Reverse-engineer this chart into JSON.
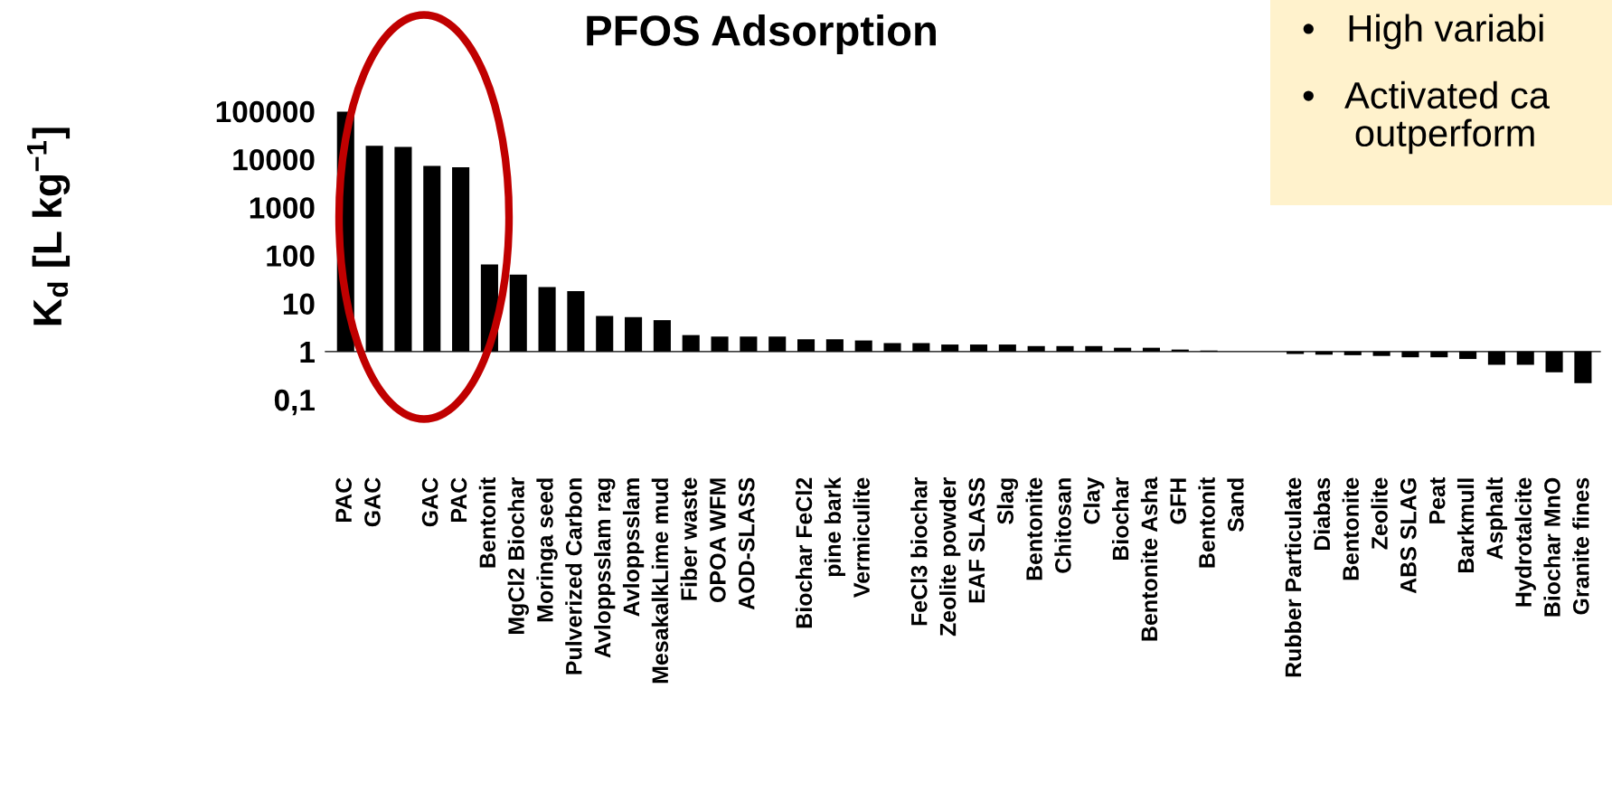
{
  "chart_data": {
    "type": "bar",
    "title": "PFOS Adsorption",
    "ylabel": "K$_{d}$ [L kg$^{−1}$]",
    "categories": [
      "PAC",
      "GAC",
      null,
      "GAC",
      "PAC",
      "Bentonit",
      "MgCl2 Biochar",
      "Moringa seed",
      "Pulverized Carbon",
      "Avloppsslam rag",
      "Avloppsslam",
      "MesakalkLime mud",
      "Fiber waste",
      "OPOA WFM",
      "AOD-SLASS",
      null,
      "Biochar FeCl2",
      "pine bark",
      "Vermiculite",
      null,
      "FeCl3 biochar",
      "Zeolite powder",
      "EAF SLASS",
      "Slag",
      "Bentonite",
      "Chitosan",
      "Clay",
      "Biochar",
      "Bentonite Asha",
      "GFH",
      "Bentonit",
      "Sand",
      null,
      "Rubber Particulate",
      "Diabas",
      "Bentonite",
      "Zeolite",
      "ABS SLAG",
      "Peat",
      "Barkmull",
      "Asphalt",
      "Hydrotalcite",
      "Biochar MnO",
      "Granite fines"
    ],
    "values": [
      97999,
      18999,
      17999,
      7299,
      6799,
      64,
      39,
      21,
      17,
      4.5,
      4.2,
      3.5,
      1.2,
      1.05,
      1.05,
      1.05,
      0.8,
      0.8,
      0.7,
      0.5,
      0.5,
      0.4,
      0.4,
      0.4,
      0.3,
      0.3,
      0.3,
      0.2,
      0.2,
      0.1,
      0.05,
      null,
      null,
      -0.11,
      -0.14,
      -0.16,
      -0.19,
      -0.24,
      -0.24,
      -0.3,
      -0.47,
      -0.47,
      -0.63,
      -0.78
    ],
    "base": [
      1,
      1,
      1,
      1,
      1,
      1,
      1,
      1,
      1,
      1,
      1,
      1,
      1,
      1,
      1,
      1,
      1,
      1,
      1,
      1,
      1,
      1,
      1,
      1,
      1,
      1,
      1,
      1,
      1,
      1,
      1,
      null,
      null,
      1,
      1,
      1,
      1,
      1,
      1,
      1,
      1,
      1,
      1,
      1
    ],
    "color": "#000000",
    "log": true,
    "ylim": [
      0.1,
      100000
    ],
    "yticks": [
      {
        "value": 0.1,
        "label": "0,1"
      },
      1,
      10,
      100,
      1000,
      10000,
      100000
    ],
    "annotations": [
      "•   High variabi",
      "•   Activated ca\n     outperform"
    ]
  }
}
